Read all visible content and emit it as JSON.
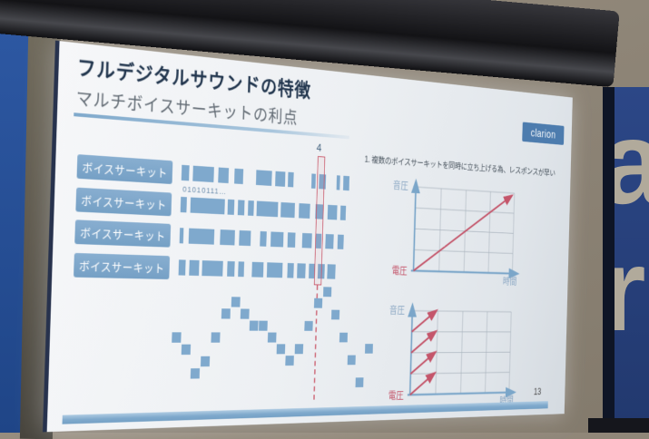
{
  "slide": {
    "title": "フルデジタルサウンドの特徴",
    "subtitle": "マルチボイスサーキットの利点",
    "logo": "clarion",
    "page_number": "13",
    "voice_buttons": [
      "ボイスサーキット",
      "ボイスサーキット",
      "ボイスサーキット",
      "ボイスサーキット"
    ],
    "bits_label": "01010111…",
    "sample_marker": "4",
    "point1": "1. 複数のボイスサーキットを同時に立ち上げる為、レスポンスが早い",
    "barcode_rows": [
      [
        10,
        5,
        28,
        6,
        14,
        8,
        12,
        18,
        22,
        5,
        14,
        4,
        8,
        26,
        6,
        5,
        10,
        16,
        5,
        5,
        9
      ],
      [
        8,
        5,
        46,
        4,
        9,
        5,
        9,
        5,
        8,
        4,
        30,
        4,
        20,
        6,
        16,
        8,
        12,
        6,
        14,
        5,
        8
      ],
      [
        5,
        7,
        34,
        8,
        20,
        6,
        16,
        13,
        9,
        6,
        18,
        6,
        11,
        10,
        14,
        6,
        8,
        6,
        12,
        6,
        9
      ],
      [
        9,
        5,
        13,
        4,
        28,
        6,
        10,
        5,
        8,
        11,
        16,
        5,
        22,
        7,
        9,
        5,
        12,
        5,
        9,
        4,
        10,
        4,
        12
      ]
    ],
    "wave_samples": [
      4,
      5,
      7,
      6,
      4,
      2,
      1,
      2,
      3,
      3,
      4,
      5,
      6,
      5,
      3,
      1,
      0,
      2,
      4,
      6,
      8,
      5
    ],
    "graphs": [
      {
        "type": "single-ramp",
        "y_axis_label": "音圧",
        "origin_label": "電圧",
        "x_axis_label": "時間",
        "grid": {
          "cols": 4,
          "rows": 4
        },
        "curve": "one linear red ramp from origin to top-right grid corner"
      },
      {
        "type": "stepped-ramps",
        "y_axis_label": "音圧",
        "origin_label": "電圧",
        "x_axis_label": "時間",
        "grid": {
          "cols": 4,
          "rows": 4
        },
        "curve": "four short red ramps stacked, each rising one grid row over the first column"
      }
    ],
    "colors": {
      "primary_blue": "#7fa9cd",
      "accent_red": "#c4556a",
      "title_navy": "#22364e",
      "axis_blue": "#7ba6c9"
    }
  },
  "environment": {
    "letter_top": "a",
    "letter_bottom": "r"
  }
}
